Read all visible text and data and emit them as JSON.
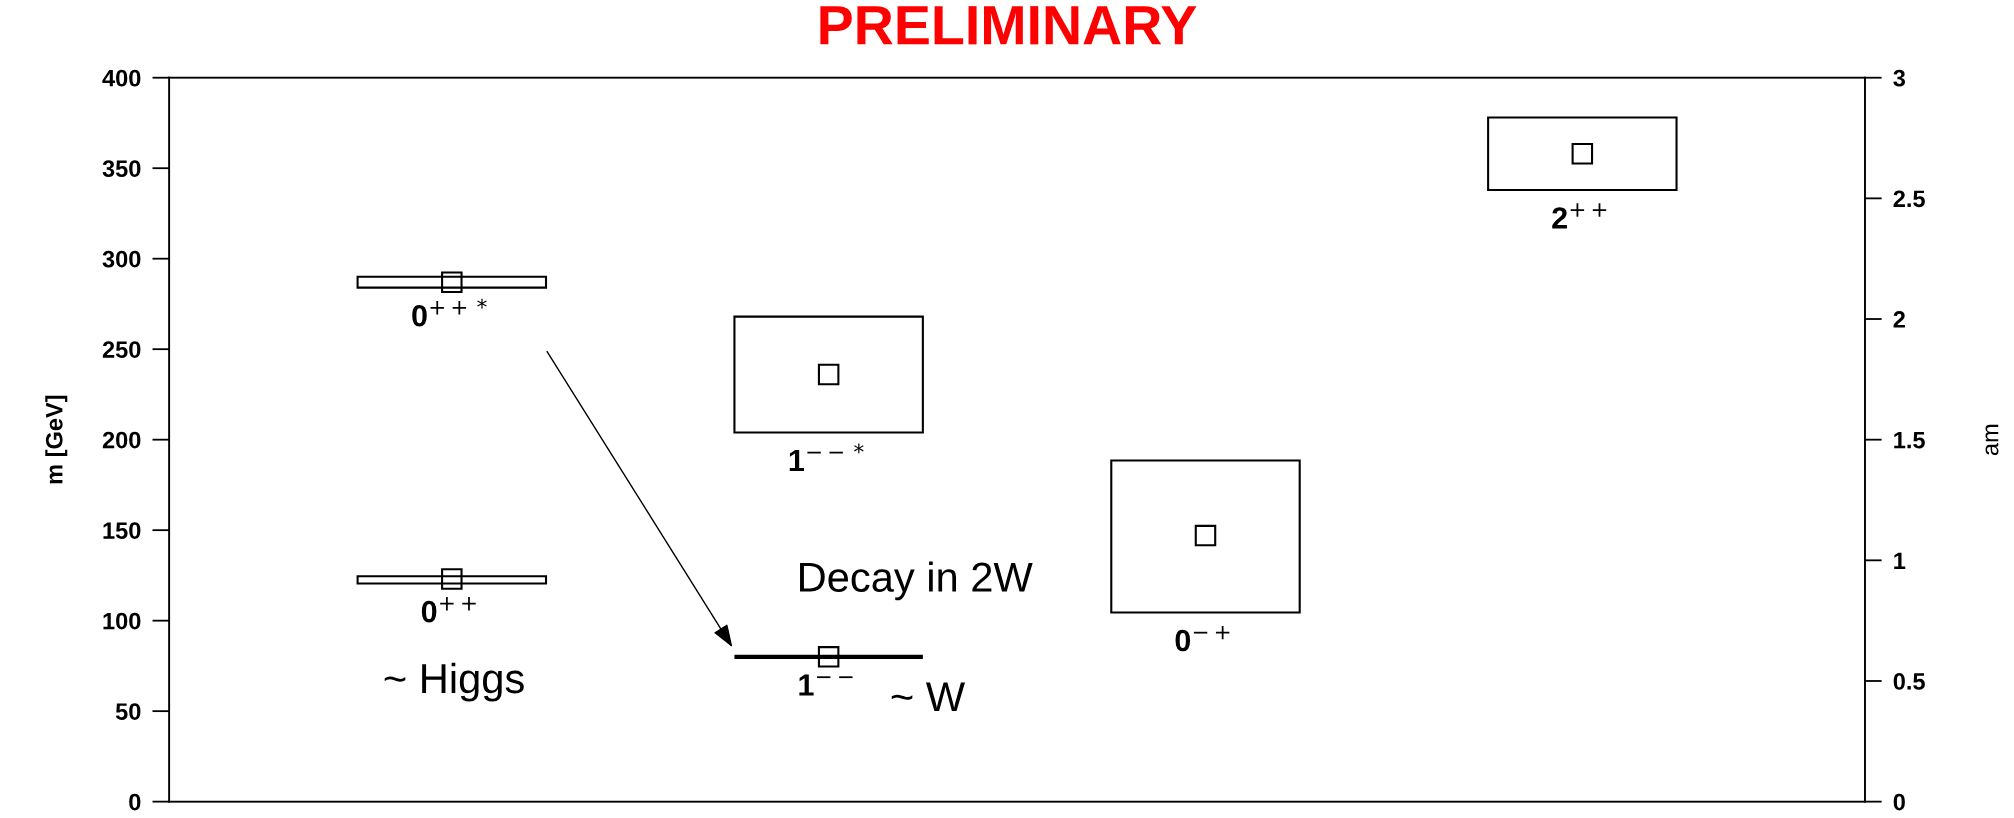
{
  "chart_data": {
    "type": "bar",
    "title": "PRELIMINARY",
    "ylabel": "m [GeV]",
    "y2label": "am",
    "categories": [
      null,
      null,
      null,
      null
    ],
    "series": [
      {
        "type": "bar",
        "name": "0$^{++}$",
        "color": "#000000",
        "base": [
          120.5,
          null,
          null,
          null
        ],
        "values": [
          4,
          null,
          null,
          null
        ]
      },
      {
        "type": "bar",
        "name": "0$^{++*}$",
        "color": "#000000",
        "base": [
          284,
          null,
          null,
          null
        ],
        "values": [
          6,
          null,
          null,
          null
        ]
      },
      {
        "name": "1$^{−−}$",
        "color": "#000000",
        "base": [
          null,
          80,
          null,
          null
        ],
        "values": [
          null,
          0,
          null,
          null
        ]
      },
      {
        "name": "1$^{−−*}$",
        "color": "#000000",
        "base": [
          null,
          204,
          null,
          null
        ],
        "values": [
          null,
          64,
          null,
          null
        ]
      },
      {
        "name": "0$^{−+}$",
        "color": "#000000",
        "base": [
          null,
          null,
          104.5,
          null
        ],
        "values": [
          null,
          null,
          84,
          null
        ]
      },
      {
        "name": "2$^{++}$",
        "color": "#000000",
        "base": [
          null,
          null,
          null,
          338
        ],
        "values": [
          null,
          null,
          null,
          40
        ]
      },
      {
        "type": "scatter",
        "color": "#000000",
        "values": [
          123,
          80,
          147,
          358
        ]
      },
      {
        "type": "scatter",
        "color": "#000000",
        "values": [
          287,
          236,
          null,
          null
        ]
      }
    ],
    "marker": "square",
    "ylim": [
      0,
      400
    ],
    "yticks": [
      0,
      50,
      100,
      150,
      200,
      250,
      300,
      350,
      400
    ],
    "y2lim": [
      0,
      3
    ],
    "y2ticks": [
      0,
      0.5,
      1,
      1.5,
      2,
      2.5,
      3
    ],
    "tick_labels": "y",
    "grid": false,
    "legend": false,
    "annotations": [
      "~ Higgs",
      "~ W",
      "Decay in 2W"
    ]
  }
}
